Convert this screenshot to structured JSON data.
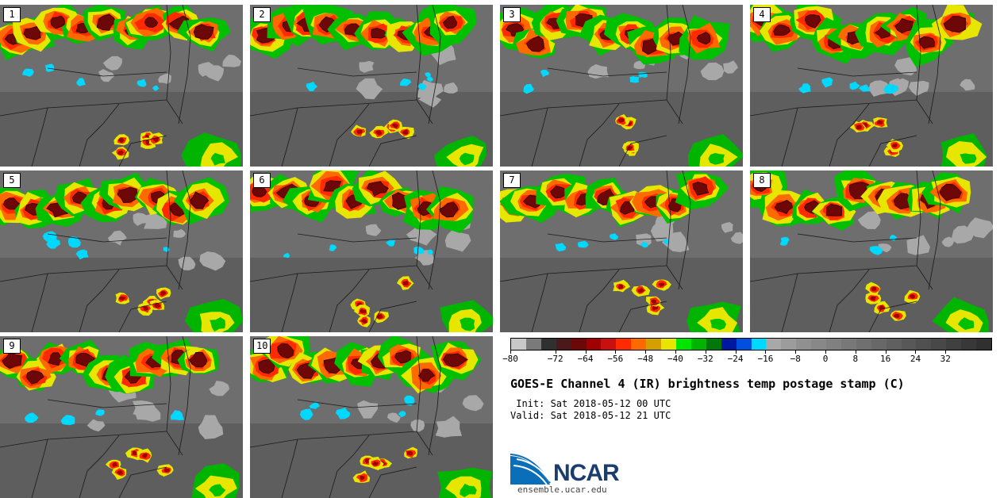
{
  "panels": [
    {
      "label": "1"
    },
    {
      "label": "2"
    },
    {
      "label": "3"
    },
    {
      "label": "4"
    },
    {
      "label": "5"
    },
    {
      "label": "6"
    },
    {
      "label": "7"
    },
    {
      "label": "8"
    },
    {
      "label": "9"
    },
    {
      "label": "10"
    }
  ],
  "colorbar": {
    "colors": [
      "#c8c8c8",
      "#7a7a7a",
      "#303030",
      "#4a1a1a",
      "#6e0808",
      "#a00000",
      "#c81010",
      "#ff2a00",
      "#ff6a00",
      "#d4a000",
      "#e6e600",
      "#00e600",
      "#00b400",
      "#00780a",
      "#0018a0",
      "#0050e0",
      "#00d8ff",
      "#a8a8a8",
      "#9c9c9c",
      "#909090",
      "#888888",
      "#808080",
      "#787878",
      "#707070",
      "#686868",
      "#606060",
      "#585858",
      "#505050",
      "#484848",
      "#404040",
      "#383838",
      "#303030"
    ],
    "ticks": [
      "−80",
      "−72",
      "−64",
      "−56",
      "−48",
      "−40",
      "−32",
      "−24",
      "−16",
      "−8",
      "0",
      "8",
      "16",
      "24",
      "32"
    ]
  },
  "title": "GOES-E Channel 4 (IR) brightness temp postage stamp (C)",
  "init": " Init: Sat 2018-05-12 00 UTC",
  "valid": "Valid: Sat 2018-05-12 21 UTC",
  "logo_text": "NCAR",
  "url": "ensemble.ucar.edu"
}
